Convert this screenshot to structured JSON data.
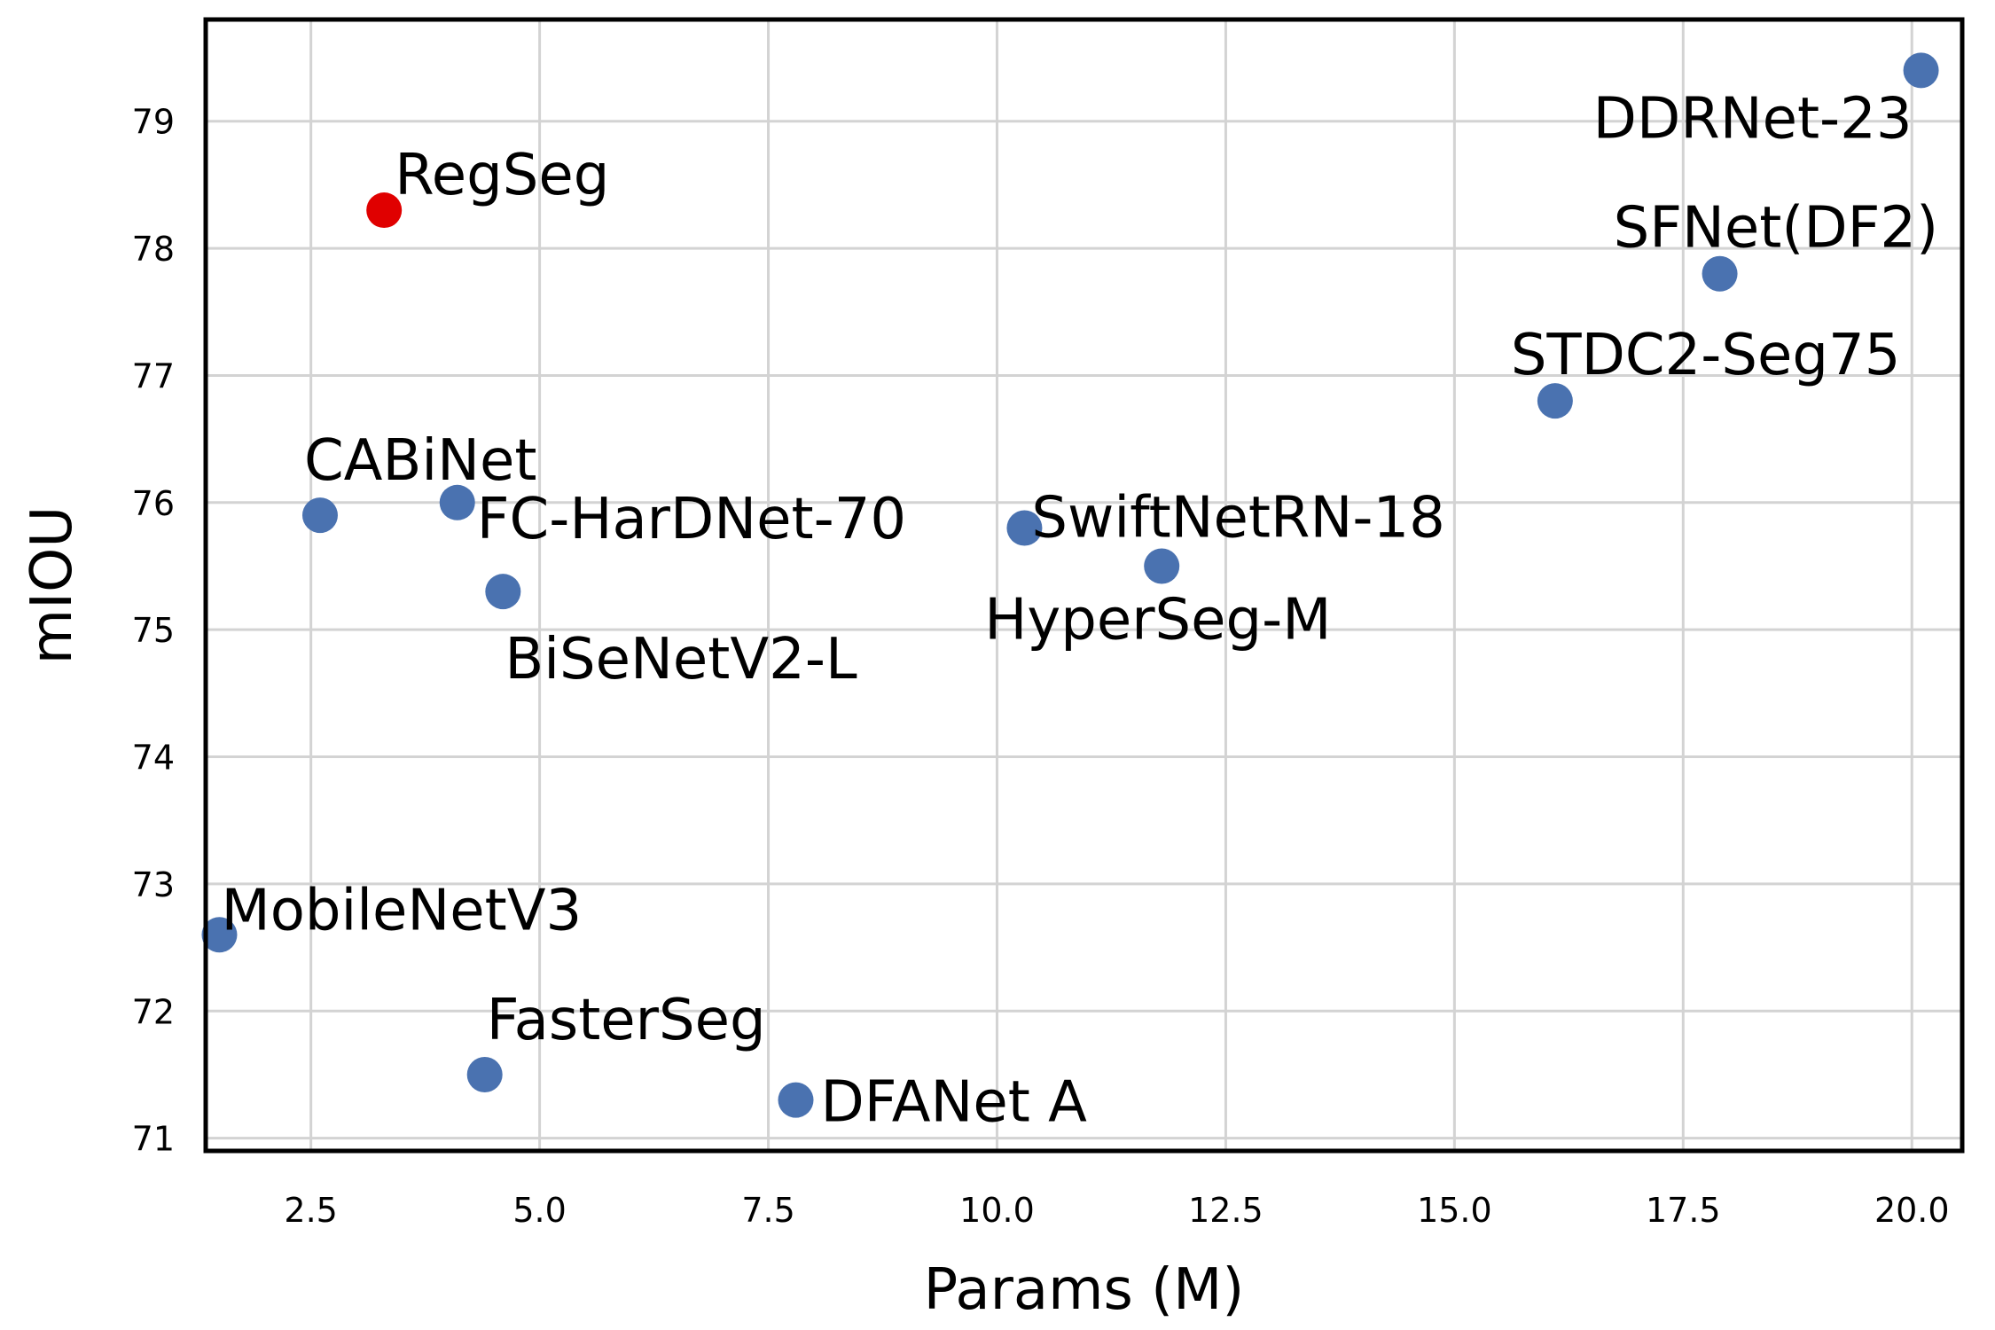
{
  "chart_data": {
    "type": "scatter",
    "title": "",
    "xlabel": "Params (M)",
    "ylabel": "mIOU",
    "xlim": [
      1.35,
      20.55
    ],
    "ylim": [
      70.9,
      79.8
    ],
    "grid": true,
    "legend": "none",
    "x_ticks": [
      {
        "value": 2.5,
        "label": "2.5"
      },
      {
        "value": 5.0,
        "label": "5.0"
      },
      {
        "value": 7.5,
        "label": "7.5"
      },
      {
        "value": 10.0,
        "label": "10.0"
      },
      {
        "value": 12.5,
        "label": "12.5"
      },
      {
        "value": 15.0,
        "label": "15.0"
      },
      {
        "value": 17.5,
        "label": "17.5"
      },
      {
        "value": 20.0,
        "label": "20.0"
      }
    ],
    "y_ticks": [
      {
        "value": 71,
        "label": "71"
      },
      {
        "value": 72,
        "label": "72"
      },
      {
        "value": 73,
        "label": "73"
      },
      {
        "value": 74,
        "label": "74"
      },
      {
        "value": 75,
        "label": "75"
      },
      {
        "value": 76,
        "label": "76"
      },
      {
        "value": 77,
        "label": "77"
      },
      {
        "value": 78,
        "label": "78"
      },
      {
        "value": 79,
        "label": "79"
      }
    ],
    "colors": {
      "default": "#4a72b0",
      "highlight": "#e00000"
    },
    "points": [
      {
        "name": "RegSeg",
        "x": 3.3,
        "y": 78.3,
        "highlight": true,
        "anchor": "above-right"
      },
      {
        "name": "DDRNet-23",
        "x": 20.1,
        "y": 79.4,
        "highlight": false,
        "anchor": "below-left"
      },
      {
        "name": "SFNet(DF2)",
        "x": 17.9,
        "y": 77.8,
        "highlight": false,
        "anchor": "above-left"
      },
      {
        "name": "STDC2-Seg75",
        "x": 16.1,
        "y": 76.8,
        "highlight": false,
        "anchor": "above-left"
      },
      {
        "name": "CABiNet",
        "x": 2.6,
        "y": 75.9,
        "highlight": false,
        "anchor": "above"
      },
      {
        "name": "FC-HarDNet-70",
        "x": 4.1,
        "y": 76.0,
        "highlight": false,
        "anchor": "right-below"
      },
      {
        "name": "BiSeNetV2-L",
        "x": 4.6,
        "y": 75.3,
        "highlight": false,
        "anchor": "below"
      },
      {
        "name": "SwiftNetRN-18",
        "x": 10.3,
        "y": 75.8,
        "highlight": false,
        "anchor": "right"
      },
      {
        "name": "HyperSeg-M",
        "x": 11.8,
        "y": 75.5,
        "highlight": false,
        "anchor": "below"
      },
      {
        "name": "MobileNetV3",
        "x": 1.5,
        "y": 72.6,
        "highlight": false,
        "anchor": "right"
      },
      {
        "name": "FasterSeg",
        "x": 4.4,
        "y": 71.5,
        "highlight": false,
        "anchor": "above"
      },
      {
        "name": "DFANet A",
        "x": 7.8,
        "y": 71.3,
        "highlight": false,
        "anchor": "right"
      }
    ]
  }
}
